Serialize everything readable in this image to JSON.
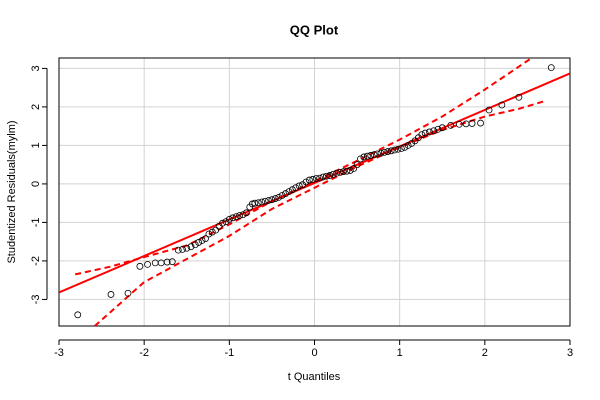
{
  "chart_data": {
    "type": "scatter",
    "title": "QQ Plot",
    "x_label": "t Quantiles",
    "y_label": "Studentized Residuals(mylm)",
    "xlim": [
      -3,
      3
    ],
    "ylim": [
      -3.69,
      3.27
    ],
    "xticks": [
      -3,
      -2,
      -1,
      0,
      1,
      2,
      3
    ],
    "yticks": [
      -3,
      -2,
      -1,
      0,
      1,
      2,
      3
    ],
    "grid": true,
    "points": {
      "color": "#000000",
      "x": [
        -2.78,
        -2.39,
        -2.19,
        -2.05,
        -1.96,
        -1.87,
        -1.8,
        -1.73,
        -1.67,
        -1.6,
        -1.55,
        -1.5,
        -1.45,
        -1.4,
        -1.36,
        -1.32,
        -1.28,
        -1.24,
        -1.2,
        -1.16,
        -1.12,
        -1.08,
        -1.04,
        -1.0,
        -0.96,
        -0.92,
        -0.88,
        -0.84,
        -0.8,
        -0.76,
        -0.73,
        -0.7,
        -0.66,
        -0.62,
        -0.58,
        -0.54,
        -0.5,
        -0.46,
        -0.42,
        -0.38,
        -0.34,
        -0.3,
        -0.26,
        -0.22,
        -0.18,
        -0.14,
        -0.1,
        -0.06,
        -0.02,
        0.02,
        0.06,
        0.1,
        0.14,
        0.18,
        0.22,
        0.26,
        0.3,
        0.34,
        0.38,
        0.42,
        0.46,
        0.5,
        0.54,
        0.58,
        0.62,
        0.66,
        0.7,
        0.74,
        0.78,
        0.82,
        0.86,
        0.9,
        0.94,
        0.98,
        1.02,
        1.06,
        1.1,
        1.14,
        1.18,
        1.22,
        1.26,
        1.3,
        1.35,
        1.4,
        1.45,
        1.5,
        1.6,
        1.7,
        1.78,
        1.85,
        1.95,
        2.05,
        2.2,
        2.4,
        2.78
      ],
      "y": [
        -3.4,
        -2.87,
        -2.84,
        -2.14,
        -2.09,
        -2.05,
        -2.05,
        -2.03,
        -2.02,
        -1.72,
        -1.7,
        -1.67,
        -1.63,
        -1.58,
        -1.52,
        -1.47,
        -1.42,
        -1.3,
        -1.25,
        -1.2,
        -1.1,
        -1.02,
        -0.98,
        -0.92,
        -0.88,
        -0.85,
        -0.82,
        -0.8,
        -0.75,
        -0.6,
        -0.52,
        -0.5,
        -0.49,
        -0.47,
        -0.45,
        -0.43,
        -0.41,
        -0.38,
        -0.35,
        -0.3,
        -0.25,
        -0.2,
        -0.15,
        -0.1,
        -0.05,
        -0.02,
        0.05,
        0.1,
        0.12,
        0.14,
        0.15,
        0.18,
        0.2,
        0.22,
        0.25,
        0.28,
        0.3,
        0.32,
        0.33,
        0.35,
        0.4,
        0.5,
        0.65,
        0.7,
        0.72,
        0.74,
        0.76,
        0.78,
        0.8,
        0.82,
        0.84,
        0.86,
        0.88,
        0.9,
        0.92,
        0.95,
        1.0,
        1.05,
        1.12,
        1.2,
        1.28,
        1.32,
        1.35,
        1.38,
        1.42,
        1.46,
        1.52,
        1.55,
        1.56,
        1.57,
        1.58,
        1.92,
        2.05,
        2.25,
        3.02
      ]
    },
    "reference_line": {
      "color": "#ff0000",
      "x": [
        -3,
        3
      ],
      "y": [
        -2.82,
        2.87
      ]
    },
    "envelope": [
      {
        "color": "#ff0000",
        "x": [
          -2.81,
          -2.4,
          -2,
          -1.5,
          -1,
          -0.5,
          0,
          0.5,
          1,
          1.5,
          2,
          2.55
        ],
        "y": [
          -2.35,
          -2.15,
          -1.9,
          -1.6,
          -1.05,
          -0.45,
          0.07,
          0.6,
          1.15,
          1.75,
          2.45,
          3.27
        ]
      },
      {
        "color": "#ff0000",
        "x": [
          -2.58,
          -2,
          -1.5,
          -1,
          -0.5,
          0,
          0.5,
          1,
          1.5,
          2,
          2.4,
          2.7
        ],
        "y": [
          -3.69,
          -2.55,
          -1.95,
          -1.35,
          -0.65,
          -0.1,
          0.45,
          0.95,
          1.4,
          1.75,
          1.95,
          2.15
        ]
      }
    ]
  }
}
